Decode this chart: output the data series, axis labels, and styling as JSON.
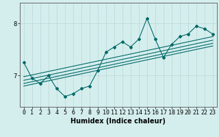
{
  "xlabel": "Humidex (Indice chaleur)",
  "ylabel": "",
  "bg_color": "#d4eeed",
  "line_color": "#006868",
  "grid_color": "#b5d8d6",
  "x_values": [
    0,
    1,
    2,
    3,
    4,
    5,
    6,
    7,
    8,
    9,
    10,
    11,
    12,
    13,
    14,
    15,
    16,
    17,
    18,
    19,
    20,
    21,
    22,
    23
  ],
  "series1": [
    7.25,
    6.95,
    6.85,
    7.0,
    6.75,
    6.6,
    6.65,
    6.75,
    6.8,
    7.1,
    7.45,
    7.55,
    7.65,
    7.55,
    7.7,
    8.1,
    7.7,
    7.35,
    7.6,
    7.75,
    7.8,
    7.95,
    7.9,
    7.8
  ],
  "trend_lines": [
    [
      6.98,
      7.75
    ],
    [
      6.91,
      7.68
    ],
    [
      6.85,
      7.62
    ],
    [
      6.8,
      7.57
    ]
  ],
  "ylim": [
    6.4,
    8.4
  ],
  "yticks": [
    7,
    8
  ],
  "xlim": [
    -0.5,
    23.5
  ]
}
